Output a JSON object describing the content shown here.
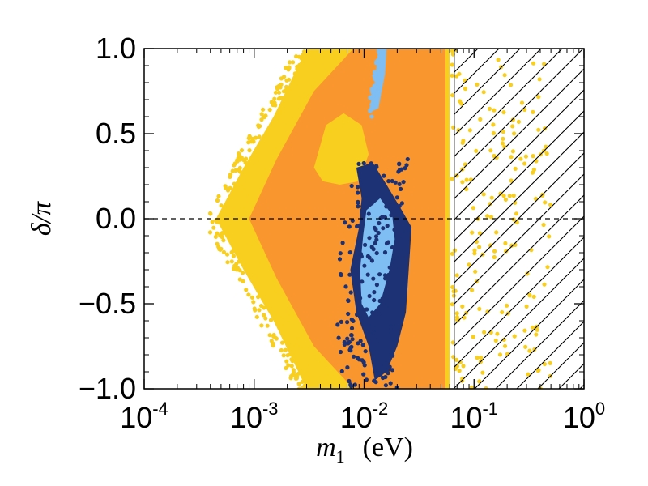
{
  "chart_data": {
    "type": "scatter",
    "title": "",
    "xscale": "log",
    "xlim": [
      0.0001,
      1
    ],
    "ylim": [
      -1.0,
      1.0
    ],
    "xlabel_symbol": "m",
    "xlabel_subscript": "1",
    "xlabel_unit": "(eV)",
    "ylabel": "δ/π",
    "x_ticks": [
      {
        "base": "10",
        "exp": "-4",
        "value": 0.0001
      },
      {
        "base": "10",
        "exp": "-3",
        "value": 0.001
      },
      {
        "base": "10",
        "exp": "-2",
        "value": 0.01
      },
      {
        "base": "10",
        "exp": "-1",
        "value": 0.1
      },
      {
        "base": "10",
        "exp": "0",
        "value": 1
      }
    ],
    "y_ticks": [
      {
        "label": "1.0",
        "value": 1.0
      },
      {
        "label": "0.5",
        "value": 0.5
      },
      {
        "label": "0.0",
        "value": 0.0
      },
      {
        "label": "−0.5",
        "value": -0.5
      },
      {
        "label": "−1.0",
        "value": -1.0
      }
    ],
    "reference_line_y": 0.0,
    "excluded_region": {
      "x_from": 0.066,
      "x_to": 1,
      "style": "hatched"
    },
    "colors": {
      "yellow": "#F8CF1E",
      "orange": "#FA962E",
      "light_blue": "#7EBEF2",
      "dark_blue": "#1D3275",
      "hatch": "#000000"
    },
    "regions": [
      {
        "name": "yellow-region",
        "color_key": "yellow",
        "description_points": [
          [
            0.00045,
            0.0
          ],
          [
            0.0008,
            0.3
          ],
          [
            0.0015,
            0.6
          ],
          [
            0.003,
            1.0
          ],
          [
            0.06,
            1.0
          ],
          [
            0.06,
            -1.0
          ],
          [
            0.003,
            -1.0
          ],
          [
            0.0015,
            -0.6
          ],
          [
            0.0008,
            -0.3
          ]
        ]
      },
      {
        "name": "orange-region",
        "color_key": "orange",
        "description_points": [
          [
            0.0009,
            0.0
          ],
          [
            0.0016,
            0.35
          ],
          [
            0.0035,
            0.75
          ],
          [
            0.008,
            1.0
          ],
          [
            0.055,
            1.0
          ],
          [
            0.055,
            -1.0
          ],
          [
            0.008,
            -1.0
          ],
          [
            0.0035,
            -0.75
          ],
          [
            0.0016,
            -0.35
          ]
        ]
      },
      {
        "name": "inner-yellow-island",
        "color_key": "yellow",
        "description_points": [
          [
            0.0035,
            0.3
          ],
          [
            0.0045,
            0.55
          ],
          [
            0.0065,
            0.62
          ],
          [
            0.0095,
            0.55
          ],
          [
            0.011,
            0.38
          ],
          [
            0.009,
            0.22
          ],
          [
            0.006,
            0.2
          ],
          [
            0.0042,
            0.22
          ]
        ]
      },
      {
        "name": "dark-blue-region",
        "color_key": "dark_blue",
        "description_points": [
          [
            0.0085,
            0.3
          ],
          [
            0.012,
            0.33
          ],
          [
            0.016,
            0.2
          ],
          [
            0.022,
            0.05
          ],
          [
            0.027,
            -0.05
          ],
          [
            0.024,
            -0.55
          ],
          [
            0.02,
            -0.75
          ],
          [
            0.016,
            -0.9
          ],
          [
            0.0125,
            -0.95
          ],
          [
            0.011,
            -0.75
          ],
          [
            0.0085,
            -0.55
          ],
          [
            0.0075,
            -0.3
          ],
          [
            0.009,
            -0.05
          ],
          [
            0.0095,
            0.12
          ]
        ]
      },
      {
        "name": "light-blue-lower",
        "color_key": "light_blue",
        "description_points": [
          [
            0.0105,
            0.05
          ],
          [
            0.014,
            0.12
          ],
          [
            0.018,
            0.02
          ],
          [
            0.019,
            -0.12
          ],
          [
            0.017,
            -0.3
          ],
          [
            0.014,
            -0.5
          ],
          [
            0.011,
            -0.58
          ],
          [
            0.0095,
            -0.5
          ],
          [
            0.0092,
            -0.3
          ],
          [
            0.0098,
            -0.1
          ]
        ]
      },
      {
        "name": "light-blue-upper",
        "color_key": "light_blue",
        "description_points": [
          [
            0.011,
            0.62
          ],
          [
            0.0125,
            0.8
          ],
          [
            0.0135,
            1.0
          ],
          [
            0.016,
            1.0
          ],
          [
            0.0155,
            0.85
          ],
          [
            0.0135,
            0.65
          ]
        ]
      }
    ]
  }
}
